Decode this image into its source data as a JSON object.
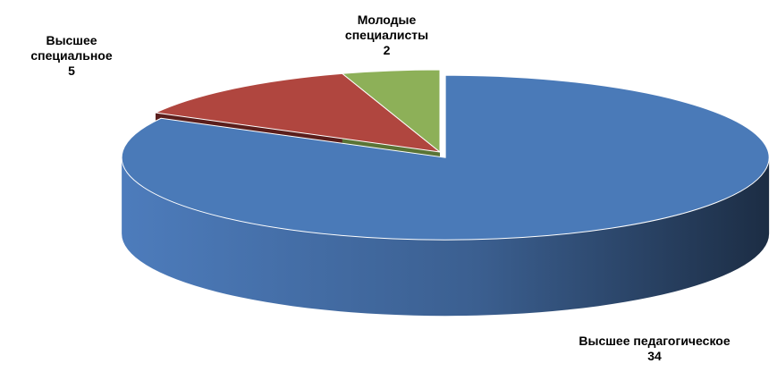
{
  "chart_data": {
    "type": "pie3d",
    "categories": [
      "Высшее педагогическое",
      "Высшее специальное",
      "Молодые специалисты"
    ],
    "values": [
      34,
      5,
      2
    ],
    "colors": [
      "#4a7ab8",
      "#b0463f",
      "#8db058"
    ],
    "side_colors": [
      "#2a4468",
      "#5a1e1c",
      "#5a7436"
    ]
  }
}
